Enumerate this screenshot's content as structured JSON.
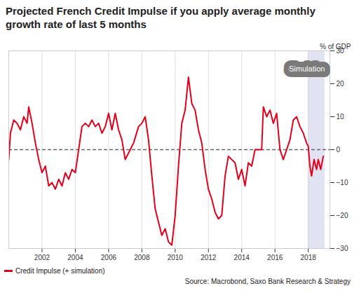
{
  "chart_data": {
    "type": "line",
    "title": "Projected French Credit Impulse if you apply average monthly growth rate of last 5 months",
    "y_label": "% of GDP",
    "source": "Source: Macrobond, Saxo Bank Research & Strategy",
    "annotation": "Simulation",
    "simulation_start": 2018.0,
    "simulation_end": 2019.0,
    "reference_line": 0,
    "x": [
      2000.0,
      2000.1,
      2000.3,
      2000.5,
      2000.7,
      2000.9,
      2001.1,
      2001.2,
      2001.4,
      2001.6,
      2001.8,
      2002.0,
      2002.2,
      2002.4,
      2002.6,
      2002.8,
      2003.0,
      2003.2,
      2003.4,
      2003.6,
      2003.8,
      2004.0,
      2004.2,
      2004.4,
      2004.6,
      2004.8,
      2005.0,
      2005.2,
      2005.4,
      2005.6,
      2005.8,
      2006.0,
      2006.2,
      2006.4,
      2006.6,
      2006.8,
      2007.0,
      2007.2,
      2007.5,
      2007.8,
      2008.0,
      2008.2,
      2008.4,
      2008.6,
      2008.8,
      2009.0,
      2009.2,
      2009.4,
      2009.6,
      2009.8,
      2010.0,
      2010.2,
      2010.4,
      2010.6,
      2010.8,
      2011.0,
      2011.2,
      2011.4,
      2011.6,
      2011.8,
      2012.0,
      2012.2,
      2012.4,
      2012.6,
      2012.8,
      2013.0,
      2013.2,
      2013.4,
      2013.6,
      2013.8,
      2014.0,
      2014.2,
      2014.4,
      2014.6,
      2014.8,
      2015.0,
      2015.2,
      2015.3,
      2015.5,
      2015.7,
      2015.9,
      2016.1,
      2016.3,
      2016.5,
      2016.7,
      2016.9,
      2017.1,
      2017.3,
      2017.5,
      2017.7,
      2017.9,
      2018.0,
      2018.1,
      2018.2,
      2018.35,
      2018.5,
      2018.6,
      2018.75,
      2018.9
    ],
    "series": [
      {
        "name": "Credit Impulse (+ simulation)",
        "color": "#e3001b",
        "values": [
          -3,
          5,
          9,
          8,
          6,
          10,
          8,
          13,
          8,
          2,
          -3,
          -7,
          -5,
          -11,
          -10,
          -12,
          -9,
          -11,
          -7,
          -9,
          -6,
          -7,
          0,
          7,
          8,
          7,
          9,
          7,
          8,
          5,
          7,
          11,
          6,
          11,
          6,
          3,
          -3,
          -1,
          2,
          7,
          8,
          10,
          3,
          -8,
          -18,
          -22,
          -26,
          -24,
          -28,
          -29,
          -20,
          -5,
          8,
          12,
          22,
          14,
          12,
          6,
          2,
          -6,
          -12,
          -15,
          -19,
          -21,
          -20,
          -8,
          -2,
          -3,
          -4,
          -9,
          -6,
          -11,
          -4,
          -5,
          0,
          0,
          0,
          13,
          10,
          12,
          8,
          11,
          0,
          -3,
          0,
          3,
          9,
          10,
          7,
          5,
          2,
          1,
          -5,
          -8,
          -3,
          -6,
          -3,
          -6,
          -2
        ]
      }
    ],
    "xlim": [
      2000.0,
      2019.3
    ],
    "xticks": [
      2002,
      2004,
      2006,
      2008,
      2010,
      2012,
      2014,
      2016,
      2018
    ],
    "ylim": [
      -30,
      30
    ],
    "yticks": [
      -30,
      -20,
      -10,
      0,
      10,
      20,
      30
    ],
    "grid": true
  }
}
